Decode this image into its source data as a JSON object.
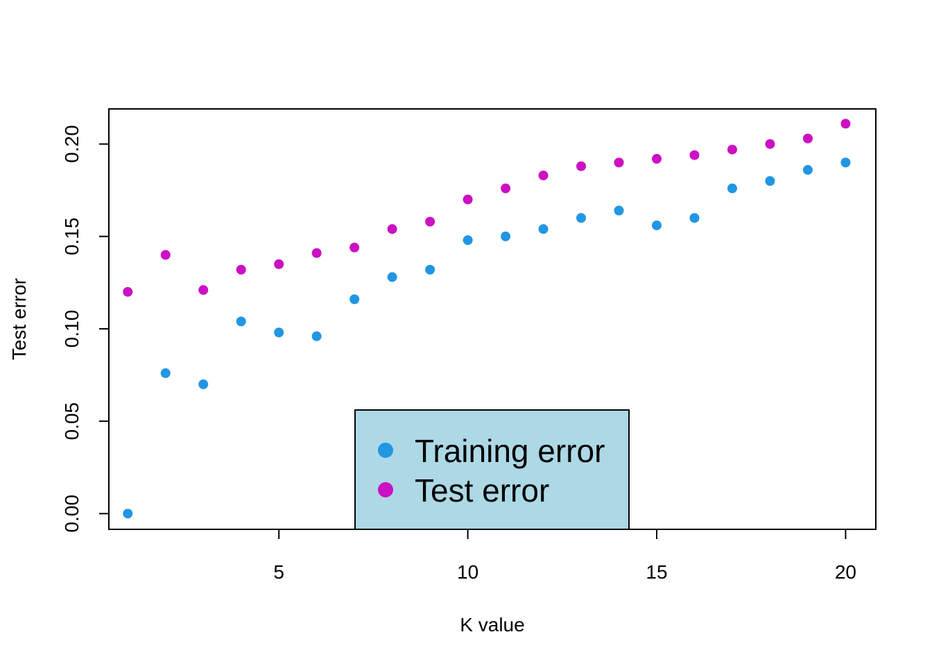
{
  "chart_data": {
    "type": "scatter",
    "title": "",
    "xlabel": "K value",
    "ylabel": "Test error",
    "xlim": [
      0.5,
      20.8
    ],
    "ylim": [
      -0.0085,
      0.219
    ],
    "xticks": [
      5,
      10,
      15,
      20
    ],
    "xtick_labels": [
      "5",
      "10",
      "15",
      "20"
    ],
    "yticks": [
      0.0,
      0.05,
      0.1,
      0.15,
      0.2
    ],
    "ytick_labels": [
      "0.00",
      "0.05",
      "0.10",
      "0.15",
      "0.20"
    ],
    "grid": false,
    "legend_position": "bottom-center",
    "legend_background": "#add8e6",
    "x": [
      1,
      2,
      3,
      4,
      5,
      6,
      7,
      8,
      9,
      10,
      11,
      12,
      13,
      14,
      15,
      16,
      17,
      18,
      19,
      20
    ],
    "series": [
      {
        "name": "Training error",
        "color": "#2196e3",
        "values": [
          0.0,
          0.076,
          0.07,
          0.104,
          0.098,
          0.096,
          0.116,
          0.128,
          0.132,
          0.148,
          0.15,
          0.154,
          0.16,
          0.164,
          0.156,
          0.16,
          0.176,
          0.18,
          0.186,
          0.19
        ]
      },
      {
        "name": "Test error",
        "color": "#cc10c3",
        "values": [
          0.12,
          0.14,
          0.121,
          0.132,
          0.135,
          0.141,
          0.144,
          0.154,
          0.158,
          0.17,
          0.176,
          0.183,
          0.188,
          0.19,
          0.192,
          0.194,
          0.197,
          0.2,
          0.203,
          0.211
        ]
      }
    ]
  }
}
